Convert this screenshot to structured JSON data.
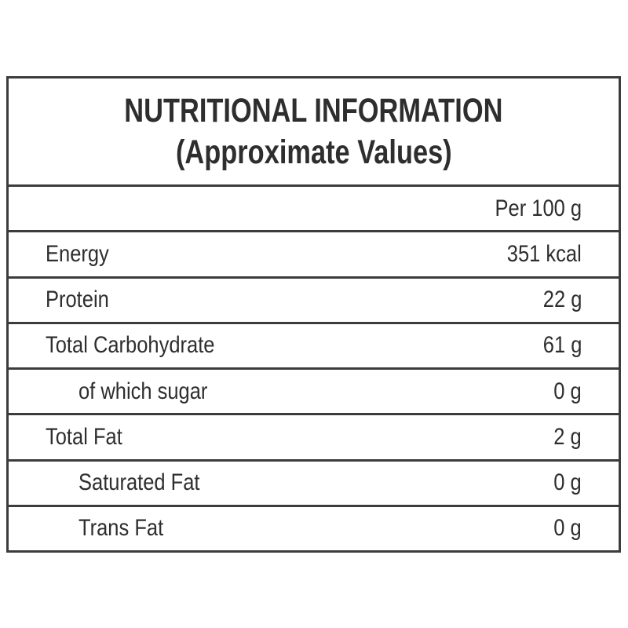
{
  "title": {
    "line1": "NUTRITIONAL INFORMATION",
    "line2": "(Approximate Values)"
  },
  "table": {
    "header": {
      "value": "Per 100 g"
    },
    "rows": [
      {
        "label": "Energy",
        "value": "351 kcal",
        "indent": false
      },
      {
        "label": "Protein",
        "value": "22 g",
        "indent": false
      },
      {
        "label": "Total Carbohydrate",
        "value": "61 g",
        "indent": false
      },
      {
        "label": "of which sugar",
        "value": "0 g",
        "indent": true
      },
      {
        "label": "Total Fat",
        "value": "2 g",
        "indent": false
      },
      {
        "label": "Saturated Fat",
        "value": "0 g",
        "indent": true
      },
      {
        "label": "Trans Fat",
        "value": "0 g",
        "indent": true
      }
    ]
  },
  "colors": {
    "text": "#2e2e2e",
    "border": "#3c3c3c",
    "background": "#ffffff"
  }
}
